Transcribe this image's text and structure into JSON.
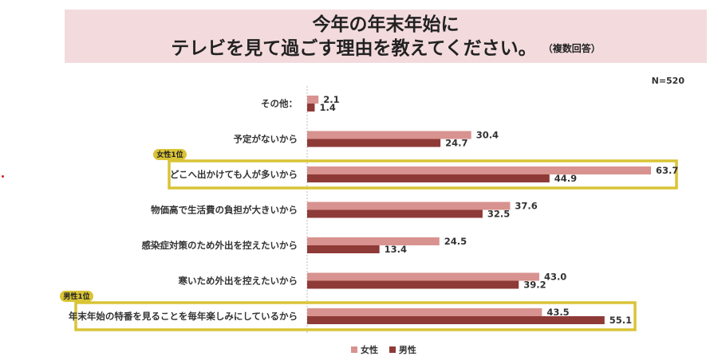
{
  "title": {
    "line1": "今年の年末年始に",
    "line2": "テレビを見て過ごす理由を教えてください。",
    "note": "（複数回答）"
  },
  "sample": "N=520",
  "colors": {
    "female": "#d8928f",
    "male": "#8e3a37",
    "highlight": "#d9c436"
  },
  "chart_data": {
    "type": "bar",
    "orientation": "horizontal",
    "categories": [
      "その他：",
      "予定がないから",
      "どこへ出かけても人が多いから",
      "物価高で生活費の負担が大きいから",
      "感染症対策のため外出を控えたいから",
      "寒いため外出を控えたいから",
      "年末年始の特番を見ることを毎年楽しみにしているから"
    ],
    "series": [
      {
        "name": "女性",
        "values": [
          2.1,
          30.4,
          63.7,
          37.6,
          24.5,
          43.0,
          43.5
        ]
      },
      {
        "name": "男性",
        "values": [
          1.4,
          24.7,
          44.9,
          32.5,
          13.4,
          39.2,
          55.1
        ]
      }
    ],
    "xlim": [
      0,
      70
    ],
    "legend": "bottom",
    "highlights": [
      {
        "category_index": 2,
        "label": "女性1位"
      },
      {
        "category_index": 6,
        "label": "男性1位"
      }
    ]
  }
}
